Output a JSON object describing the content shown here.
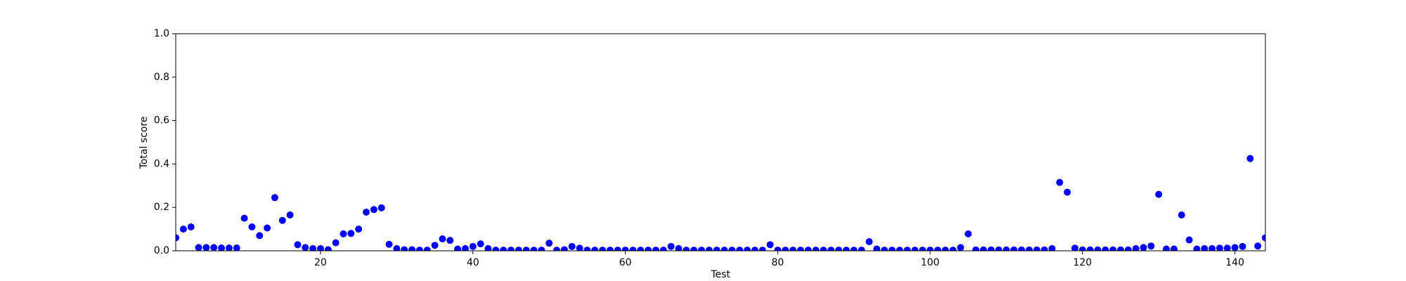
{
  "chart_data": {
    "type": "scatter",
    "x_label": "Test",
    "y_label": "Total score",
    "color": "#0000ff",
    "x": [
      1,
      2,
      3,
      4,
      5,
      6,
      7,
      8,
      9,
      10,
      11,
      12,
      13,
      14,
      15,
      16,
      17,
      18,
      19,
      20,
      21,
      22,
      23,
      24,
      25,
      26,
      27,
      28,
      29,
      30,
      31,
      32,
      33,
      34,
      35,
      36,
      37,
      38,
      39,
      40,
      41,
      42,
      43,
      44,
      45,
      46,
      47,
      48,
      49,
      50,
      51,
      52,
      53,
      54,
      55,
      56,
      57,
      58,
      59,
      60,
      61,
      62,
      63,
      64,
      65,
      66,
      67,
      68,
      69,
      70,
      71,
      72,
      73,
      74,
      75,
      76,
      77,
      78,
      79,
      80,
      81,
      82,
      83,
      84,
      85,
      86,
      87,
      88,
      89,
      90,
      91,
      92,
      93,
      94,
      95,
      96,
      97,
      98,
      99,
      100,
      101,
      102,
      103,
      104,
      105,
      106,
      107,
      108,
      109,
      110,
      111,
      112,
      113,
      114,
      115,
      116,
      117,
      118,
      119,
      120,
      121,
      122,
      123,
      124,
      125,
      126,
      127,
      128,
      129,
      130,
      131,
      132,
      133,
      134,
      135,
      136,
      137,
      138,
      139,
      140,
      141,
      142,
      143,
      144
    ],
    "values": [
      0.06,
      0.1,
      0.11,
      0.015,
      0.015,
      0.015,
      0.013,
      0.013,
      0.013,
      0.15,
      0.11,
      0.07,
      0.105,
      0.245,
      0.14,
      0.165,
      0.028,
      0.015,
      0.01,
      0.01,
      0.005,
      0.037,
      0.078,
      0.08,
      0.1,
      0.178,
      0.19,
      0.198,
      0.03,
      0.01,
      0.005,
      0.005,
      0.003,
      0.003,
      0.025,
      0.055,
      0.048,
      0.008,
      0.01,
      0.02,
      0.032,
      0.01,
      0.003,
      0.003,
      0.003,
      0.003,
      0.003,
      0.003,
      0.003,
      0.035,
      0.003,
      0.005,
      0.02,
      0.012,
      0.003,
      0.003,
      0.003,
      0.003,
      0.003,
      0.003,
      0.003,
      0.003,
      0.003,
      0.003,
      0.003,
      0.02,
      0.01,
      0.003,
      0.003,
      0.003,
      0.003,
      0.003,
      0.003,
      0.003,
      0.003,
      0.003,
      0.003,
      0.003,
      0.028,
      0.003,
      0.003,
      0.003,
      0.003,
      0.003,
      0.003,
      0.003,
      0.003,
      0.003,
      0.003,
      0.003,
      0.003,
      0.042,
      0.008,
      0.003,
      0.003,
      0.003,
      0.003,
      0.003,
      0.003,
      0.003,
      0.003,
      0.003,
      0.003,
      0.015,
      0.078,
      0.004,
      0.004,
      0.004,
      0.004,
      0.004,
      0.004,
      0.004,
      0.004,
      0.004,
      0.004,
      0.01,
      0.315,
      0.27,
      0.012,
      0.004,
      0.004,
      0.004,
      0.004,
      0.004,
      0.004,
      0.004,
      0.01,
      0.015,
      0.022,
      0.26,
      0.008,
      0.008,
      0.165,
      0.05,
      0.008,
      0.01,
      0.01,
      0.012,
      0.012,
      0.015,
      0.02,
      0.425,
      0.022,
      0.06
    ],
    "xlim": [
      1,
      144
    ],
    "xticks": [
      20,
      40,
      60,
      80,
      100,
      120,
      140
    ],
    "ylim": [
      0,
      1
    ],
    "yticks": [
      {
        "value": 0,
        "label": "0.0"
      },
      {
        "value": 0.2,
        "label": "0.2"
      },
      {
        "value": 0.4,
        "label": "0.4"
      },
      {
        "value": 0.6,
        "label": "0.6"
      },
      {
        "value": 0.8,
        "label": "0.8"
      },
      {
        "value": 1,
        "label": "1.0"
      }
    ],
    "grid": false
  }
}
